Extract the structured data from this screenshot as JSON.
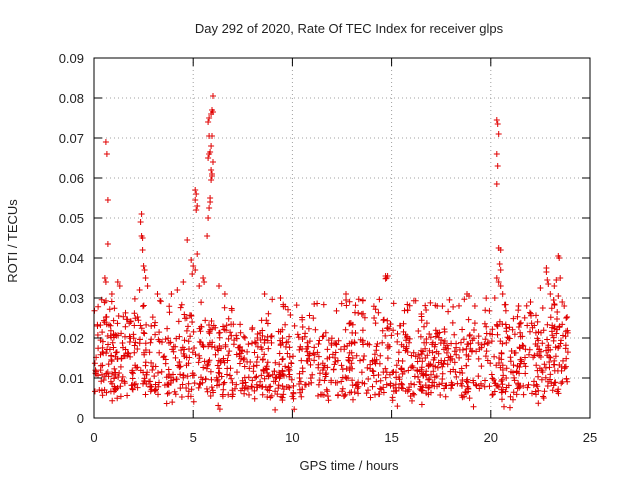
{
  "chart_data": {
    "type": "scatter",
    "title": "Day 292 of 2020, Rate Of TEC Index for receiver glps",
    "xlabel": "GPS time / hours",
    "ylabel": "ROTI / TECUs",
    "xlim": [
      0,
      25
    ],
    "ylim": [
      0,
      0.09
    ],
    "x_ticks": [
      0,
      5,
      10,
      15,
      20,
      25
    ],
    "x_tick_labels": [
      "0",
      "5",
      "10",
      "15",
      "20",
      "25"
    ],
    "y_ticks": [
      0,
      0.01,
      0.02,
      0.03,
      0.04,
      0.05,
      0.06,
      0.07,
      0.08,
      0.09
    ],
    "y_tick_labels": [
      "0",
      "0.01",
      "0.02",
      "0.03",
      "0.04",
      "0.05",
      "0.06",
      "0.07",
      "0.08",
      "0.09"
    ],
    "grid": true,
    "marker": "+",
    "color": "#e00000",
    "series": [
      {
        "name": "ROTI",
        "background_band": {
          "x_range": [
            0,
            23.9
          ],
          "typical_low": 0.006,
          "typical_high": 0.022,
          "outliers_up_to": 0.03,
          "point_count": 1400
        },
        "points": [
          [
            0.6,
            0.069
          ],
          [
            0.65,
            0.066
          ],
          [
            0.7,
            0.0545
          ],
          [
            0.7,
            0.0435
          ],
          [
            0.55,
            0.035
          ],
          [
            0.6,
            0.034
          ],
          [
            1.2,
            0.034
          ],
          [
            1.3,
            0.033
          ],
          [
            0.9,
            0.031
          ],
          [
            2.4,
            0.051
          ],
          [
            2.35,
            0.049
          ],
          [
            2.4,
            0.0455
          ],
          [
            2.45,
            0.045
          ],
          [
            2.45,
            0.042
          ],
          [
            2.5,
            0.038
          ],
          [
            2.55,
            0.037
          ],
          [
            2.6,
            0.035
          ],
          [
            2.7,
            0.033
          ],
          [
            2.3,
            0.032
          ],
          [
            3.2,
            0.031
          ],
          [
            4.7,
            0.0445
          ],
          [
            4.9,
            0.0395
          ],
          [
            5.0,
            0.038
          ],
          [
            5.1,
            0.037
          ],
          [
            4.95,
            0.036
          ],
          [
            5.2,
            0.041
          ],
          [
            5.15,
            0.052
          ],
          [
            5.2,
            0.053
          ],
          [
            5.1,
            0.0545
          ],
          [
            5.15,
            0.056
          ],
          [
            5.1,
            0.057
          ],
          [
            5.3,
            0.033
          ],
          [
            4.2,
            0.032
          ],
          [
            3.9,
            0.031
          ],
          [
            4.5,
            0.034
          ],
          [
            5.5,
            0.035
          ],
          [
            5.55,
            0.034
          ],
          [
            5.7,
            0.0455
          ],
          [
            5.75,
            0.05
          ],
          [
            5.8,
            0.0525
          ],
          [
            5.85,
            0.054
          ],
          [
            5.85,
            0.055
          ],
          [
            5.9,
            0.0595
          ],
          [
            5.95,
            0.0605
          ],
          [
            5.95,
            0.061
          ],
          [
            5.75,
            0.065
          ],
          [
            5.8,
            0.066
          ],
          [
            5.85,
            0.0665
          ],
          [
            5.9,
            0.068
          ],
          [
            5.8,
            0.0705
          ],
          [
            5.95,
            0.0705
          ],
          [
            5.75,
            0.074
          ],
          [
            5.8,
            0.075
          ],
          [
            5.9,
            0.076
          ],
          [
            6.0,
            0.0765
          ],
          [
            5.95,
            0.077
          ],
          [
            6.0,
            0.0805
          ],
          [
            5.9,
            0.062
          ],
          [
            6.0,
            0.064
          ],
          [
            6.3,
            0.033
          ],
          [
            6.6,
            0.031
          ],
          [
            8.6,
            0.031
          ],
          [
            9.4,
            0.03
          ],
          [
            11.1,
            0.0285
          ],
          [
            12.7,
            0.031
          ],
          [
            12.7,
            0.0295
          ],
          [
            13.5,
            0.026
          ],
          [
            14.7,
            0.0355
          ],
          [
            14.75,
            0.035
          ],
          [
            14.8,
            0.0355
          ],
          [
            14.7,
            0.0348
          ],
          [
            15.8,
            0.027
          ],
          [
            16.5,
            0.026
          ],
          [
            17.3,
            0.028
          ],
          [
            18.8,
            0.031
          ],
          [
            18.9,
            0.0305
          ],
          [
            19.2,
            0.028
          ],
          [
            20.3,
            0.0745
          ],
          [
            20.35,
            0.0735
          ],
          [
            20.4,
            0.071
          ],
          [
            20.3,
            0.066
          ],
          [
            20.35,
            0.063
          ],
          [
            20.3,
            0.0585
          ],
          [
            20.4,
            0.0425
          ],
          [
            20.5,
            0.042
          ],
          [
            20.45,
            0.0385
          ],
          [
            20.5,
            0.037
          ],
          [
            20.3,
            0.035
          ],
          [
            20.4,
            0.034
          ],
          [
            20.5,
            0.033
          ],
          [
            20.6,
            0.031
          ],
          [
            20.2,
            0.03
          ],
          [
            21.4,
            0.028
          ],
          [
            22.0,
            0.029
          ],
          [
            22.5,
            0.0325
          ],
          [
            22.8,
            0.0375
          ],
          [
            22.8,
            0.0365
          ],
          [
            22.85,
            0.0345
          ],
          [
            22.9,
            0.0335
          ],
          [
            23.2,
            0.033
          ],
          [
            23.3,
            0.0345
          ],
          [
            23.4,
            0.0405
          ],
          [
            23.45,
            0.04
          ],
          [
            23.5,
            0.035
          ],
          [
            23.4,
            0.0305
          ],
          [
            23.6,
            0.029
          ],
          [
            23.7,
            0.028
          ],
          [
            23.0,
            0.031
          ],
          [
            23.2,
            0.0285
          ]
        ]
      }
    ]
  }
}
